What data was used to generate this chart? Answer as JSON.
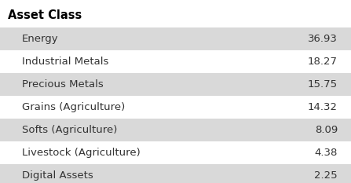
{
  "title": "Asset Class",
  "rows": [
    {
      "label": "Energy",
      "value": "36.93"
    },
    {
      "label": "Industrial Metals",
      "value": "18.27"
    },
    {
      "label": "Precious Metals",
      "value": "15.75"
    },
    {
      "label": "Grains (Agriculture)",
      "value": "14.32"
    },
    {
      "label": "Softs (Agriculture)",
      "value": "8.09"
    },
    {
      "label": "Livestock (Agriculture)",
      "value": "4.38"
    },
    {
      "label": "Digital Assets",
      "value": "2.25"
    }
  ],
  "stripe_color": "#d9d9d9",
  "bg_color": "#ffffff",
  "title_color": "#000000",
  "text_color": "#333333",
  "title_fontsize": 10.5,
  "row_fontsize": 9.5,
  "fig_width": 4.47,
  "fig_height": 2.33,
  "dpi": 100
}
